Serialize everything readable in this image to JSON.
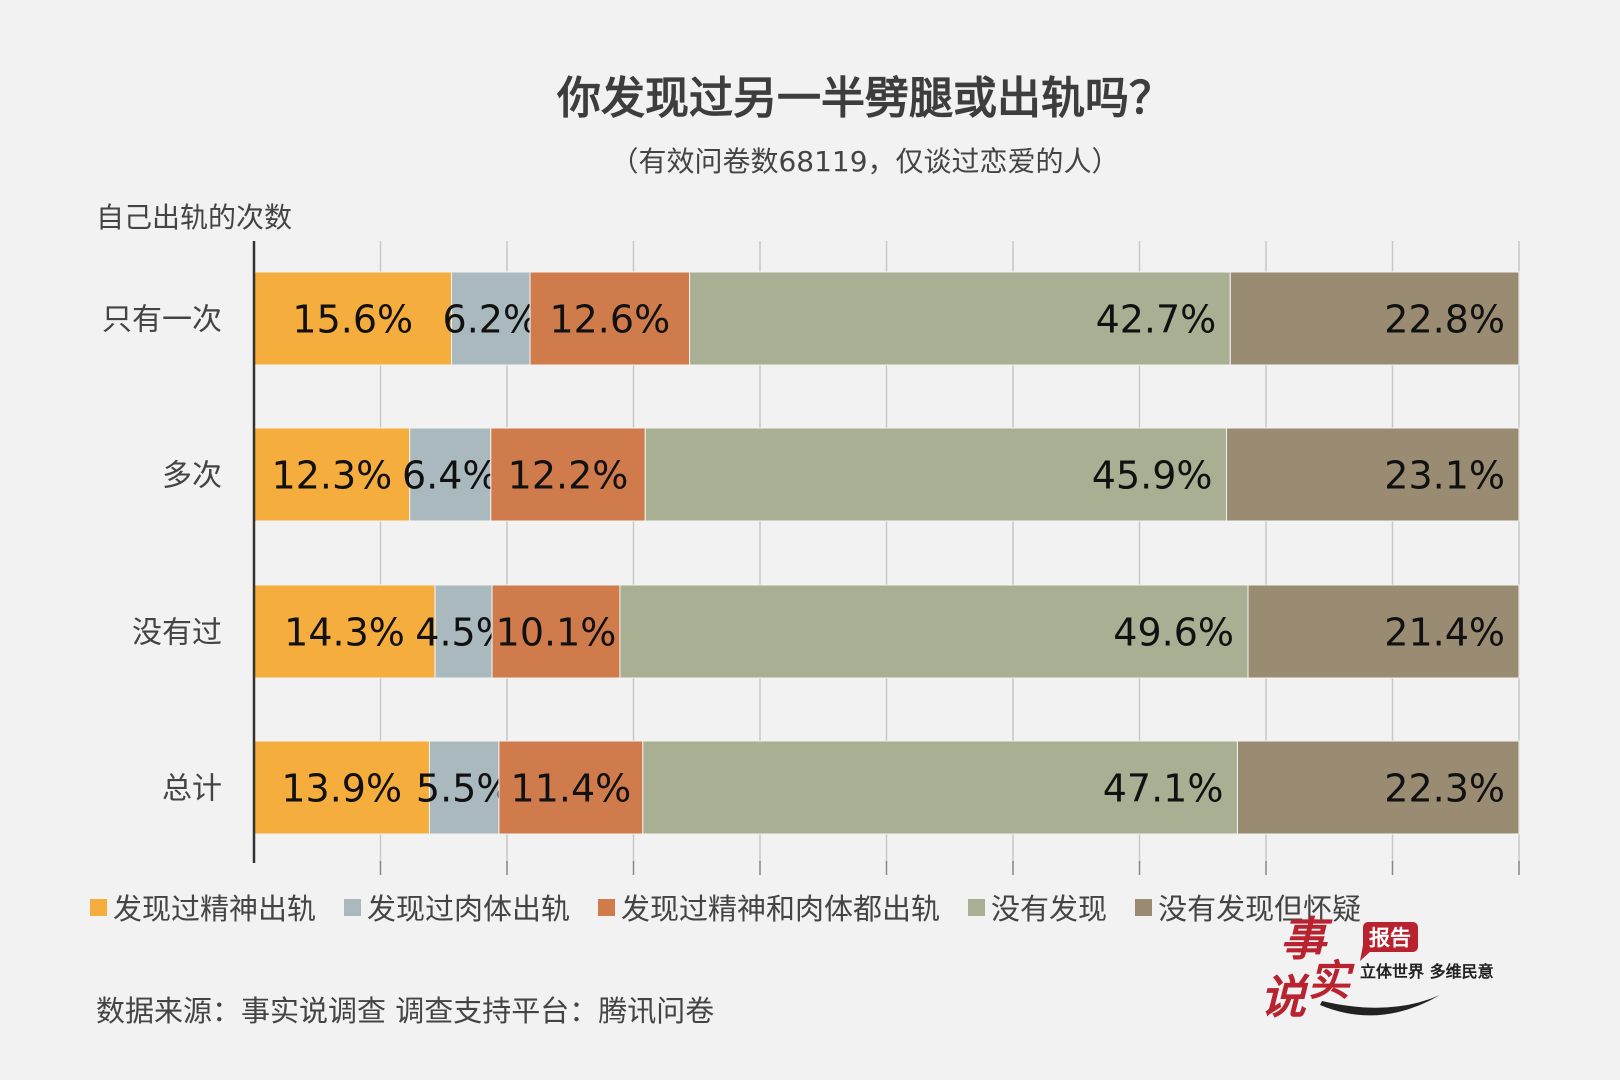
{
  "chart_data": {
    "type": "bar",
    "orientation": "horizontal-stacked-100",
    "title": "你发现过另一半劈腿或出轨吗？",
    "subtitle": "（有效问卷数68119，仅谈过恋爱的人）",
    "ylabel": "自己出轨的次数",
    "xlabel": "",
    "xlim": [
      0,
      100
    ],
    "grid": true,
    "legend_position": "bottom",
    "categories": [
      "只有一次",
      "多次",
      "没有过",
      "总计"
    ],
    "series": [
      {
        "name": "发现过精神出轨",
        "color": "#f5ad3d",
        "values": [
          15.6,
          12.3,
          14.3,
          13.9
        ]
      },
      {
        "name": "发现过肉体出轨",
        "color": "#a9b9bd",
        "values": [
          6.2,
          6.4,
          4.5,
          5.5
        ]
      },
      {
        "name": "发现过精神和肉体都出轨",
        "color": "#d07b4b",
        "values": [
          12.6,
          12.2,
          10.1,
          11.4
        ]
      },
      {
        "name": "没有发现",
        "color": "#a9af92",
        "values": [
          42.7,
          45.9,
          49.6,
          47.1
        ]
      },
      {
        "name": "没有发现但怀疑",
        "color": "#9a8c72",
        "values": [
          22.8,
          23.1,
          21.4,
          22.3
        ]
      }
    ]
  },
  "footer": "数据来源：事实说调查  调查支持平台：腾讯问卷",
  "logo": {
    "main": "事实说",
    "badge": "报告",
    "slogan": "立体世界 多维民意"
  }
}
